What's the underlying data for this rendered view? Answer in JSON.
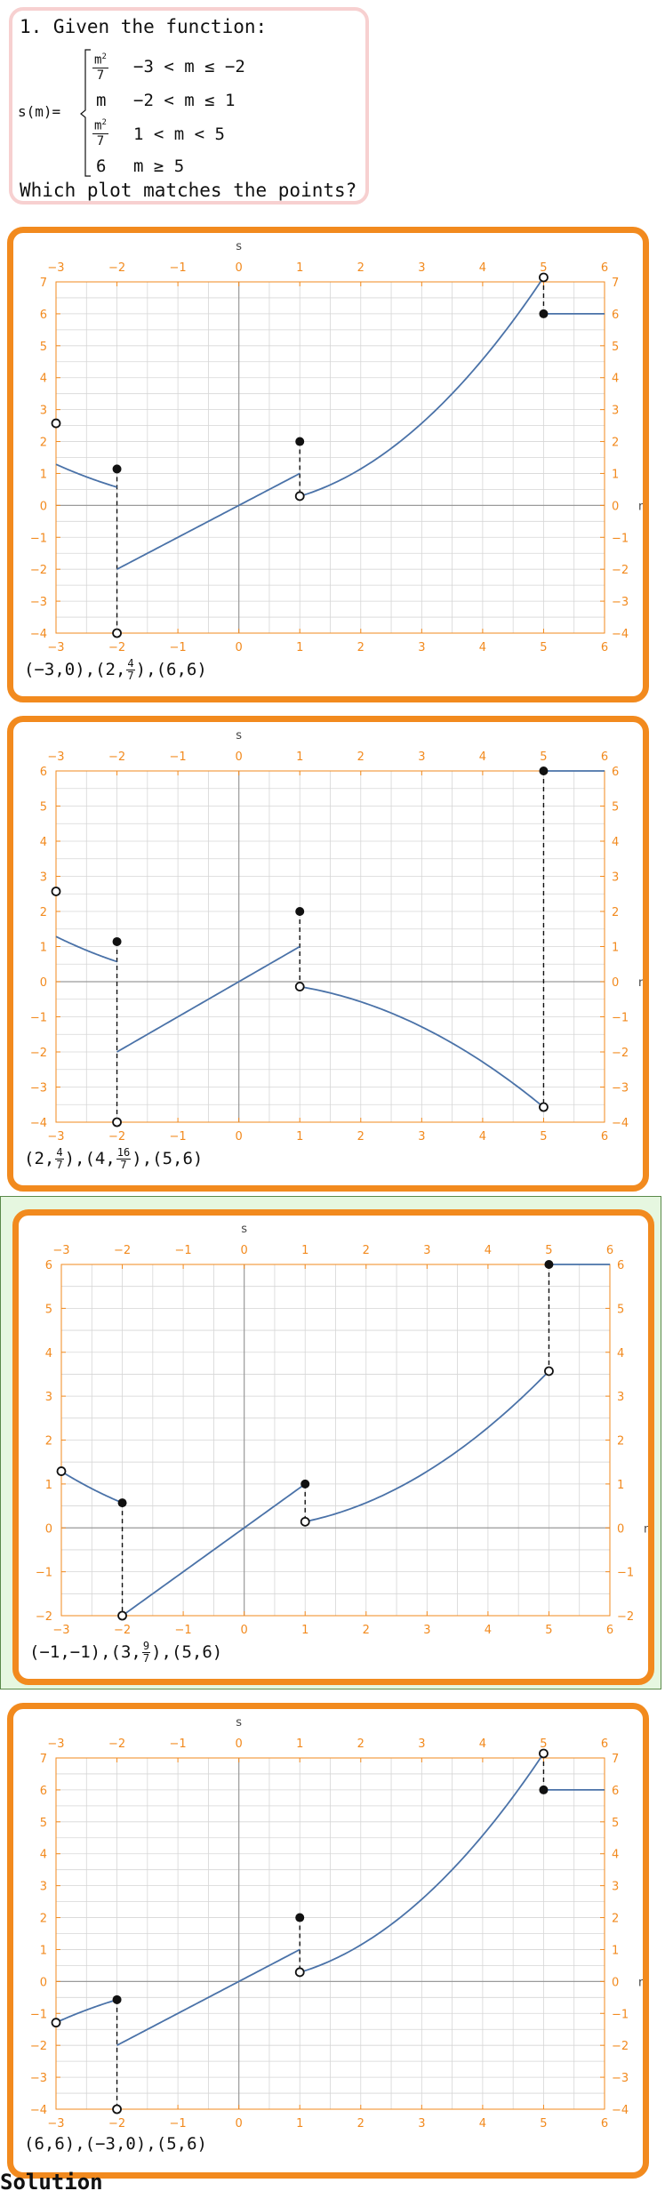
{
  "question": {
    "title": "1. Given the function:",
    "func_name": "s(m)=",
    "pieces": [
      {
        "expr_num": "m",
        "expr_sup": "2",
        "expr_den": "7",
        "condition": "−3 < m ≤ −2"
      },
      {
        "expr": "m",
        "condition": "−2 < m ≤ 1"
      },
      {
        "expr_num": "m",
        "expr_sup": "2",
        "expr_den": "7",
        "condition": "1 < m < 5"
      },
      {
        "expr": "6",
        "condition": "m ≥ 5"
      }
    ],
    "prompt": "Which plot matches the points?"
  },
  "options": [
    {
      "points_parts": [
        "(−3,0)",
        ",",
        "(2,",
        "4",
        "7",
        ")",
        ",",
        "(6,6)"
      ],
      "chart_data": {
        "type": "line",
        "xlabel": "m",
        "ylabel": "s",
        "xlim": [
          -3,
          6
        ],
        "ylim": [
          -4,
          7
        ],
        "xticks": [
          -3,
          -2,
          -1,
          0,
          1,
          2,
          3,
          4,
          5,
          6
        ],
        "yticks": [
          -4,
          -3,
          -2,
          -1,
          0,
          1,
          2,
          3,
          4,
          5,
          6,
          7
        ],
        "grid": true,
        "segments": [
          {
            "fn": "m^2/7",
            "x0": -3,
            "x1": -2
          },
          {
            "fn": "m",
            "x0": -2,
            "x1": 1
          },
          {
            "fn": "m^2/3.5",
            "x0": 1,
            "x1": 5
          },
          {
            "fn": "6",
            "x0": 5,
            "x1": 6
          }
        ],
        "open_points": [
          [
            -3,
            2.57
          ],
          [
            -2,
            -4
          ],
          [
            1,
            0.29
          ],
          [
            5,
            7.14
          ]
        ],
        "closed_points": [
          [
            -2,
            1.14
          ],
          [
            1,
            2
          ],
          [
            5,
            6
          ]
        ],
        "dashed": [
          [
            -2,
            1.14,
            -4
          ],
          [
            1,
            2,
            0.29
          ],
          [
            5,
            7.14,
            6
          ]
        ]
      }
    },
    {
      "points_parts": [
        "(2,",
        "4",
        "7",
        ")",
        ",",
        "(4,",
        "16",
        "7",
        ")",
        ",",
        "(5,6)"
      ],
      "chart_data": {
        "type": "line",
        "xlabel": "m",
        "ylabel": "s",
        "xlim": [
          -3,
          6
        ],
        "ylim": [
          -4,
          6
        ],
        "xticks": [
          -3,
          -2,
          -1,
          0,
          1,
          2,
          3,
          4,
          5,
          6
        ],
        "yticks": [
          -4,
          -3,
          -2,
          -1,
          0,
          1,
          2,
          3,
          4,
          5,
          6
        ],
        "grid": true,
        "segments": [
          {
            "fn": "m^2/7",
            "x0": -3,
            "x1": -2
          },
          {
            "fn": "m",
            "x0": -2,
            "x1": 1
          },
          {
            "fn": "-m^2/7",
            "x0": 1,
            "x1": 5
          },
          {
            "fn": "6",
            "x0": 5,
            "x1": 6
          }
        ],
        "open_points": [
          [
            -3,
            2.57
          ],
          [
            -2,
            -4
          ],
          [
            1,
            -0.14
          ],
          [
            5,
            -3.57
          ]
        ],
        "closed_points": [
          [
            -2,
            1.14
          ],
          [
            1,
            2
          ],
          [
            5,
            6
          ]
        ],
        "dashed": [
          [
            -2,
            1.14,
            -4
          ],
          [
            1,
            2,
            -0.14
          ],
          [
            5,
            6,
            -3.57
          ]
        ]
      }
    },
    {
      "points_parts": [
        "(−1,−1)",
        ",",
        "(3,",
        "9",
        "7",
        ")",
        ",",
        "(5,6)"
      ],
      "chart_data": {
        "type": "line",
        "xlabel": "m",
        "ylabel": "s",
        "xlim": [
          -3,
          6
        ],
        "ylim": [
          -2,
          6
        ],
        "xticks": [
          -3,
          -2,
          -1,
          0,
          1,
          2,
          3,
          4,
          5,
          6
        ],
        "yticks": [
          -2,
          -1,
          0,
          1,
          2,
          3,
          4,
          5,
          6
        ],
        "grid": true,
        "segments": [
          {
            "fn": "m^2/7",
            "x0": -3,
            "x1": -2
          },
          {
            "fn": "m",
            "x0": -2,
            "x1": 1
          },
          {
            "fn": "m^2/7",
            "x0": 1,
            "x1": 5
          },
          {
            "fn": "6",
            "x0": 5,
            "x1": 6
          }
        ],
        "open_points": [
          [
            -3,
            1.29
          ],
          [
            -2,
            -2
          ],
          [
            1,
            0.14
          ],
          [
            5,
            3.57
          ]
        ],
        "closed_points": [
          [
            -2,
            0.57
          ],
          [
            1,
            1
          ],
          [
            5,
            6
          ]
        ],
        "dashed": [
          [
            -2,
            0.57,
            -2
          ],
          [
            1,
            1,
            0.14
          ],
          [
            5,
            6,
            3.57
          ]
        ]
      }
    },
    {
      "points_parts": [
        "(6,6)",
        ",",
        "(−3,0)",
        ",",
        "(5,6)"
      ],
      "chart_data": {
        "type": "line",
        "xlabel": "m",
        "ylabel": "s",
        "xlim": [
          -3,
          6
        ],
        "ylim": [
          -4,
          7
        ],
        "xticks": [
          -3,
          -2,
          -1,
          0,
          1,
          2,
          3,
          4,
          5,
          6
        ],
        "yticks": [
          -4,
          -3,
          -2,
          -1,
          0,
          1,
          2,
          3,
          4,
          5,
          6,
          7
        ],
        "grid": true,
        "segments": [
          {
            "fn": "-m^2/7",
            "x0": -3,
            "x1": -2
          },
          {
            "fn": "m",
            "x0": -2,
            "x1": 1
          },
          {
            "fn": "m^2/3.5",
            "x0": 1,
            "x1": 5
          },
          {
            "fn": "6",
            "x0": 5,
            "x1": 6
          }
        ],
        "open_points": [
          [
            -3,
            -1.29
          ],
          [
            -2,
            -4
          ],
          [
            1,
            0.29
          ],
          [
            5,
            7.14
          ]
        ],
        "closed_points": [
          [
            -2,
            -0.57
          ],
          [
            1,
            2
          ],
          [
            5,
            6
          ]
        ],
        "dashed": [
          [
            -2,
            -0.57,
            -4
          ],
          [
            1,
            2,
            0.29
          ],
          [
            5,
            7.14,
            6
          ]
        ]
      }
    }
  ],
  "solution_label": "Solution",
  "colors": {
    "orange": "#f28a1e",
    "curve": "#4a72a8",
    "grid": "#d6d6d6",
    "axis": "#9a9a9a",
    "highlight": "#e6f7e0"
  }
}
